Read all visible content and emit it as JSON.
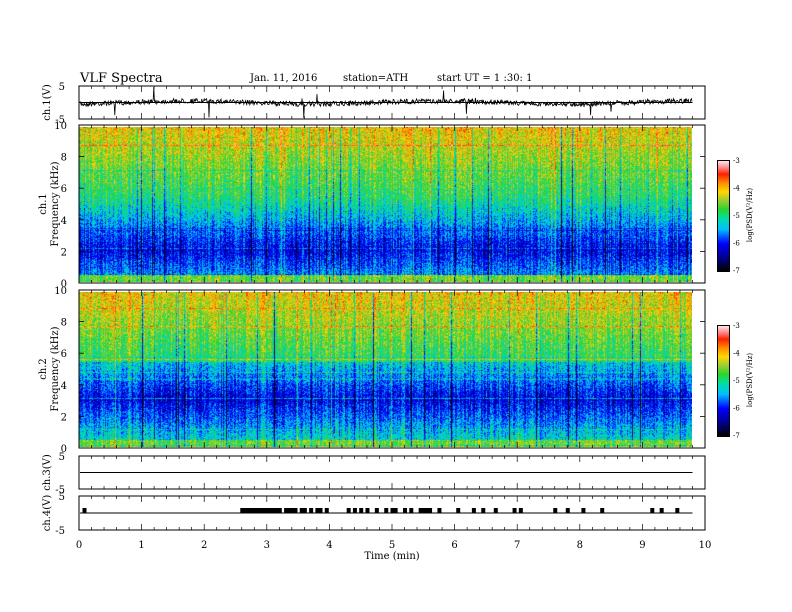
{
  "header": {
    "title": "VLF Spectra",
    "date": "Jan. 11, 2016",
    "station": "station=ATH",
    "start": "start UT =  1 :30: 1"
  },
  "colors": {
    "spectrogram_low": "#000000",
    "spectrogram_mid": "#00bfff",
    "spectrogram_high": "#ff0000",
    "trace": "#000000"
  },
  "chart_data": [
    {
      "type": "line",
      "panel": "ch1-waveform",
      "ylabel": "ch.1(V)",
      "yticks": [
        "5",
        "-5"
      ],
      "ylim": [
        -5,
        5
      ],
      "description_values": {
        "baseline": 0
      },
      "xlim": [
        0,
        10
      ]
    },
    {
      "type": "heatmap",
      "panel": "ch1-spectrogram",
      "ylabel": "ch.1\nFrequency (kHz)",
      "ylabel_top": "ch.1",
      "ylabel_bottom": "Frequency (kHz)",
      "yticks": [
        "0",
        "2",
        "4",
        "6",
        "8",
        "10"
      ],
      "ylim": [
        0,
        10
      ],
      "xlim": [
        0,
        9.8
      ],
      "colorbar": {
        "label": "log(PSD(V²/Hz)",
        "ticks": [
          "-3",
          "-4",
          "-5",
          "-6",
          "-7"
        ],
        "range": [
          -7,
          -3
        ]
      }
    },
    {
      "type": "heatmap",
      "panel": "ch2-spectrogram",
      "ylabel_top": "ch.2",
      "ylabel_bottom": "Frequency (kHz)",
      "yticks": [
        "0",
        "2",
        "4",
        "6",
        "8",
        "10"
      ],
      "ylim": [
        0,
        10
      ],
      "xlim": [
        0,
        9.8
      ],
      "colorbar": {
        "label": "log(PSD(V²/Hz)",
        "ticks": [
          "-3",
          "-4",
          "-5",
          "-6",
          "-7"
        ],
        "range": [
          -7,
          -3
        ]
      }
    },
    {
      "type": "line",
      "panel": "ch3-waveform",
      "ylabel": "ch.3(V)",
      "yticks": [
        "5",
        "-5"
      ],
      "ylim": [
        -5,
        5
      ],
      "xlim": [
        0,
        10
      ]
    },
    {
      "type": "line",
      "panel": "ch4-waveform",
      "ylabel": "ch.4(V)",
      "yticks": [
        "5",
        "-5"
      ],
      "ylim": [
        -5,
        5
      ],
      "xlim": [
        0,
        10
      ],
      "pulse_times_min": [
        0.08,
        2.6,
        2.65,
        2.7,
        2.75,
        2.8,
        2.85,
        2.9,
        2.95,
        3.0,
        3.05,
        3.1,
        3.15,
        3.2,
        3.3,
        3.35,
        3.4,
        3.45,
        3.55,
        3.6,
        3.7,
        3.8,
        3.85,
        3.95,
        4.3,
        4.4,
        4.5,
        4.6,
        4.75,
        4.9,
        5.0,
        5.05,
        5.2,
        5.3,
        5.45,
        5.5,
        5.55,
        5.6,
        5.75,
        6.05,
        6.3,
        6.45,
        6.65,
        6.95,
        7.05,
        7.6,
        7.8,
        8.05,
        8.35,
        9.15,
        9.3,
        9.55
      ]
    }
  ],
  "xaxis": {
    "label": "Time (min)",
    "ticks": [
      "0",
      "1",
      "2",
      "3",
      "4",
      "5",
      "6",
      "7",
      "8",
      "9",
      "10"
    ],
    "xlim": [
      0,
      10
    ]
  }
}
